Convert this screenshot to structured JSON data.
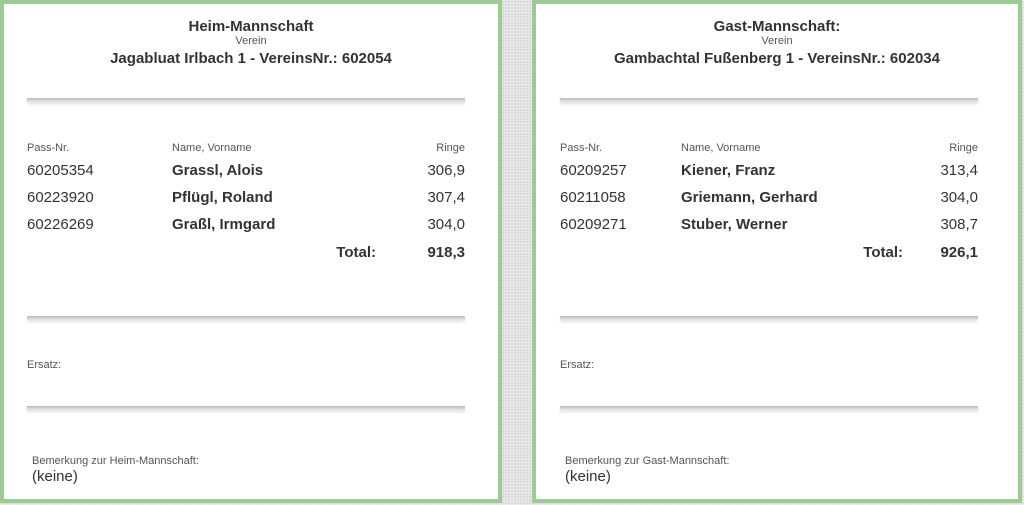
{
  "columns": {
    "pass": "Pass-Nr.",
    "name": "Name, Vorname",
    "ringe": "Ringe"
  },
  "total_label": "Total:",
  "ersatz_label": "Ersatz:",
  "verein_label": "Verein",
  "teams": [
    {
      "title": "Heim-Mannschaft",
      "club": "Jagabluat Irlbach 1  -  VereinsNr.: 602054",
      "players": [
        {
          "pass": "60205354",
          "name": "Grassl, Alois",
          "ringe": "306,9"
        },
        {
          "pass": "60223920",
          "name": "Pflügl, Roland",
          "ringe": "307,4"
        },
        {
          "pass": "60226269",
          "name": "Graßl, Irmgard",
          "ringe": "304,0"
        }
      ],
      "total": "918,3",
      "remark_label": "Bemerkung zur Heim-Mannschaft:",
      "remark": "(keine)"
    },
    {
      "title": "Gast-Mannschaft:",
      "club": "Gambachtal Fußenberg 1  -  VereinsNr.: 602034",
      "players": [
        {
          "pass": "60209257",
          "name": "Kiener, Franz",
          "ringe": "313,4"
        },
        {
          "pass": "60211058",
          "name": "Griemann, Gerhard",
          "ringe": "304,0"
        },
        {
          "pass": "60209271",
          "name": "Stuber, Werner",
          "ringe": "308,7"
        }
      ],
      "total": "926,1",
      "remark_label": "Bemerkung zur Gast-Mannschaft:",
      "remark": "(keine)"
    }
  ],
  "colors": {
    "border": "#9ccc94"
  }
}
